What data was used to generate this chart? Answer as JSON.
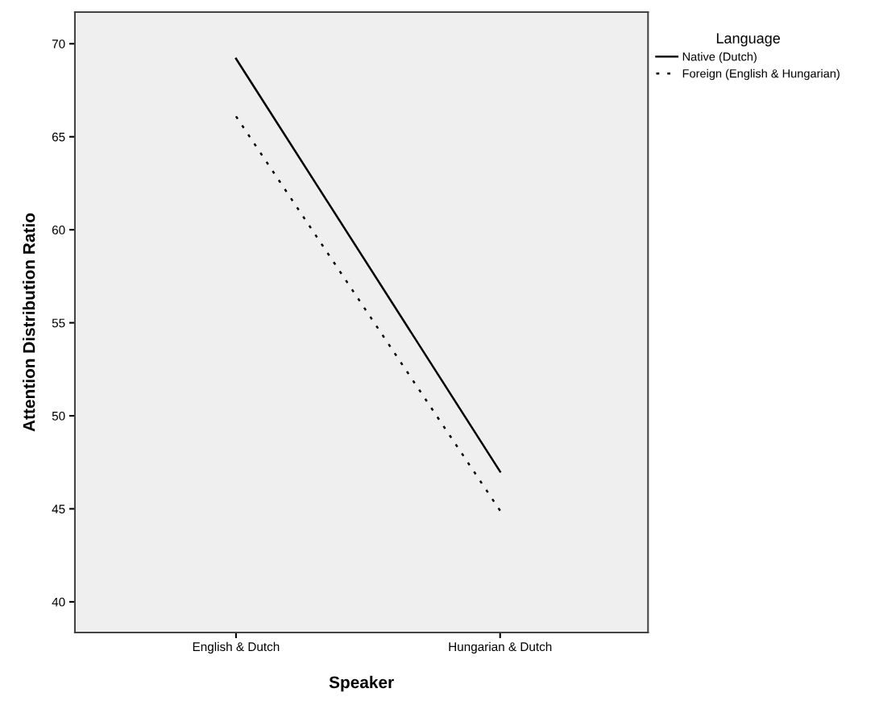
{
  "chart_data": {
    "type": "line",
    "xlabel": "Speaker",
    "ylabel": "Attention Distribution Ratio",
    "legend_title": "Language",
    "categories": [
      "English & Dutch",
      "Hungarian & Dutch"
    ],
    "series": [
      {
        "name": "Native (Dutch)",
        "color": "#000000",
        "values": [
          69.2,
          47.0
        ],
        "line_style": "solid"
      },
      {
        "name": "Foreign (English & Hungarian)",
        "color": "#000000",
        "values": [
          66.1,
          44.9
        ],
        "line_style": "dotted"
      }
    ],
    "ylim": [
      38.35,
      71.7
    ],
    "yticks": [
      40,
      45,
      50,
      55,
      60,
      65,
      70
    ],
    "grid": false,
    "legend": "top right",
    "marker": "none"
  }
}
